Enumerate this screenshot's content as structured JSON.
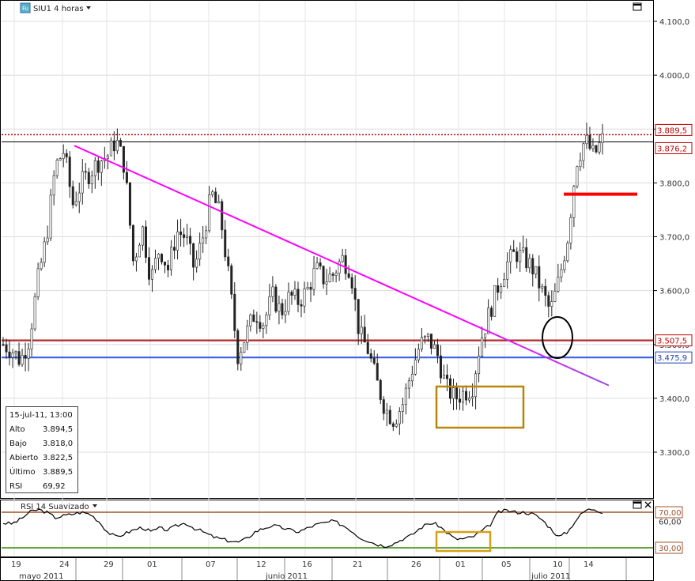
{
  "chart_title": "SIU1 4 horas",
  "title_icon": "Fu",
  "rsi_title": "RSI 14 Suavizado",
  "info_box": {
    "date": "15-jul-11, 13:00",
    "rows": [
      {
        "label": "Alto",
        "value": "3.894,5"
      },
      {
        "label": "Bajo",
        "value": "3.818,0"
      },
      {
        "label": "Abierto",
        "value": "3.822,5"
      },
      {
        "label": "Último",
        "value": "3.889,5"
      },
      {
        "label": "RSI",
        "value": "69,92"
      }
    ]
  },
  "chart_data": [
    {
      "type": "candlestick",
      "symbol": "SIU1",
      "timeframe": "4 horas",
      "y_ticks": [
        "4.100,0",
        "4.000,0",
        "3.900,0",
        "3.800,0",
        "3.700,0",
        "3.600,0",
        "3.500,0",
        "3.400,0",
        "3.300,0"
      ],
      "y_tick_values": [
        4100,
        4000,
        3900,
        3800,
        3700,
        3600,
        3500,
        3400,
        3300
      ],
      "ylim": [
        3200,
        4160
      ],
      "x_ticks": [
        "19",
        "24",
        "29",
        "01",
        "07",
        "12",
        "16",
        "21",
        "26",
        "01",
        "05",
        "10",
        "14"
      ],
      "x_months": [
        "mayo 2011",
        "junio 2011",
        "julio 2011"
      ],
      "price_path": [
        3500,
        3490,
        3470,
        3510,
        3620,
        3700,
        3830,
        3860,
        3760,
        3800,
        3820,
        3840,
        3850,
        3880,
        3830,
        3650,
        3720,
        3620,
        3680,
        3640,
        3710,
        3700,
        3640,
        3700,
        3780,
        3740,
        3620,
        3480,
        3520,
        3560,
        3540,
        3590,
        3560,
        3590,
        3580,
        3600,
        3640,
        3620,
        3630,
        3660,
        3640,
        3520,
        3490,
        3430,
        3380,
        3360,
        3390,
        3450,
        3500,
        3510,
        3480,
        3420,
        3400,
        3410,
        3420,
        3510,
        3560,
        3610,
        3650,
        3670,
        3660,
        3640,
        3600,
        3560,
        3620,
        3700,
        3840,
        3880,
        3850,
        3880
      ],
      "price_labels": [
        {
          "text": "3.889,5",
          "value": 3889.5,
          "color": "#c00000"
        },
        {
          "text": "3.876,2",
          "value": 3876.2,
          "color": "#c00000"
        },
        {
          "text": "3.507,5",
          "value": 3507.5,
          "color": "#c00000"
        },
        {
          "text": "3.475,9",
          "value": 3475.9,
          "color": "#1a3fb0"
        }
      ],
      "h_lines": [
        {
          "value": 3889.5,
          "color": "#c00000",
          "style": "dotted"
        },
        {
          "value": 3876.2,
          "color": "#000000",
          "style": "solid"
        },
        {
          "value": 3507.5,
          "color": "#b02a2a",
          "style": "solid"
        },
        {
          "value": 3475.9,
          "color": "#3b5fe0",
          "style": "solid"
        }
      ],
      "trend_line": {
        "from_value": 3900,
        "to_value": 3440,
        "color_start": "#ff00ff",
        "color_end": "#9b4de0"
      },
      "resistance_mark": {
        "value": 3779,
        "color": "#ff0000"
      }
    },
    {
      "type": "line",
      "name": "RSI 14 Suavizado",
      "y_ticks": [
        "70,00",
        "60,00",
        "30,00"
      ],
      "y_tick_values": [
        70,
        60,
        30
      ],
      "ylim": [
        20,
        80
      ],
      "levels": [
        {
          "value": 70,
          "color": "#a0522d"
        },
        {
          "value": 30,
          "color": "#2e8b00"
        }
      ],
      "values": [
        58,
        57,
        62,
        70,
        73,
        70,
        64,
        66,
        68,
        70,
        68,
        60,
        48,
        42,
        46,
        50,
        53,
        48,
        52,
        50,
        55,
        58,
        52,
        48,
        43,
        40,
        38,
        36,
        40,
        48,
        52,
        55,
        53,
        50,
        48,
        52,
        56,
        58,
        60,
        56,
        50,
        42,
        38,
        34,
        32,
        35,
        40,
        44,
        52,
        58,
        56,
        48,
        40,
        40,
        42,
        48,
        55,
        70,
        72,
        70,
        70,
        68,
        62,
        52,
        42,
        48,
        62,
        72,
        74,
        70
      ]
    }
  ],
  "icons": {
    "maximize_main": "maximize-icon",
    "maximize_rsi": "maximize-icon",
    "close_rsi": "close-icon",
    "dropdown": "caret-down-icon"
  }
}
